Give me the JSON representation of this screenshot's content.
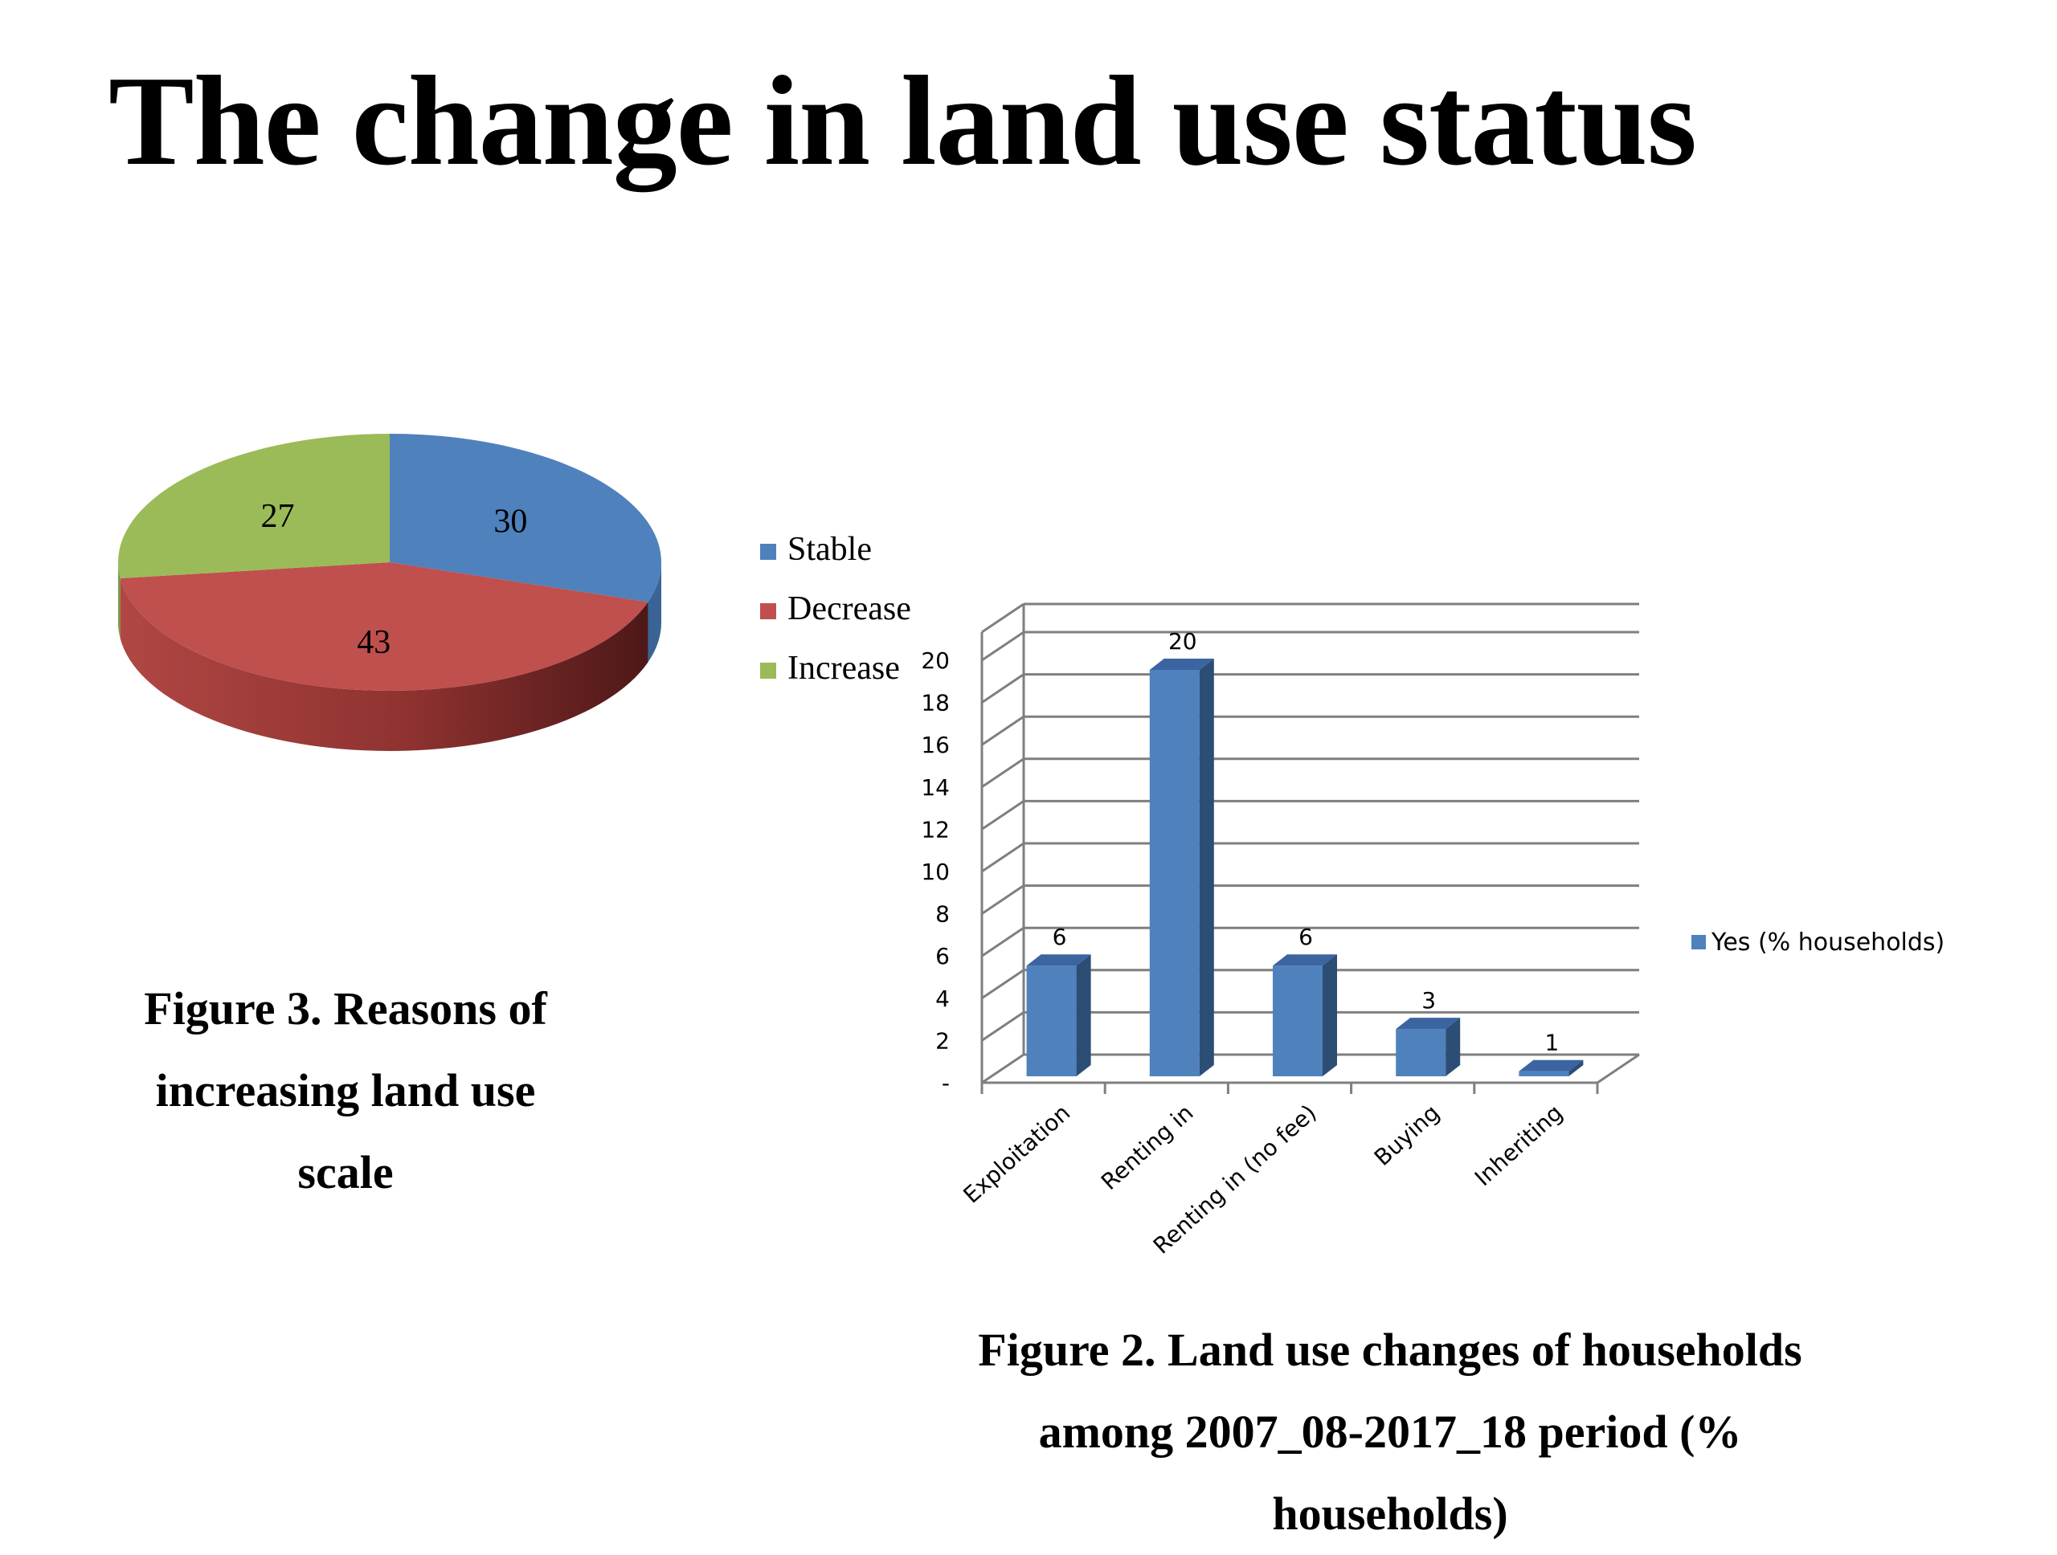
{
  "title": "The change in land use status",
  "captions": {
    "fig3": [
      "Figure 3.  Reasons of",
      "increasing land use",
      "scale"
    ],
    "fig2": [
      "Figure 2. Land use changes of households",
      "among 2007_08-2017_18 period (%",
      "households)"
    ]
  },
  "colors": {
    "stable": "#4F81BD",
    "decrease": "#C0504D",
    "increase": "#9BBB59",
    "bar": "#4F81BD"
  },
  "chart_data": [
    {
      "type": "pie",
      "slices": [
        {
          "label": "Stable",
          "value": 30
        },
        {
          "label": "Decrease",
          "value": 43
        },
        {
          "label": "Increase",
          "value": 27
        }
      ],
      "legend": [
        "Stable",
        "Decrease",
        "Increase"
      ],
      "legend_position": "right",
      "style": "3d"
    },
    {
      "type": "bar",
      "style": "3d",
      "categories": [
        "Exploitation",
        "Renting in",
        "Renting in (no fee)",
        "Buying",
        "Inheriting"
      ],
      "series": [
        {
          "name": "Yes (% households)",
          "values": [
            6,
            20,
            6,
            3,
            1
          ]
        }
      ],
      "data_labels": [
        "6",
        "20",
        "6",
        "3",
        "1"
      ],
      "ylim": [
        0,
        20
      ],
      "yticks": [
        "-",
        "2",
        "4",
        "6",
        "8",
        "10",
        "12",
        "14",
        "16",
        "18",
        "20"
      ],
      "grid": true,
      "legend_position": "right"
    }
  ]
}
